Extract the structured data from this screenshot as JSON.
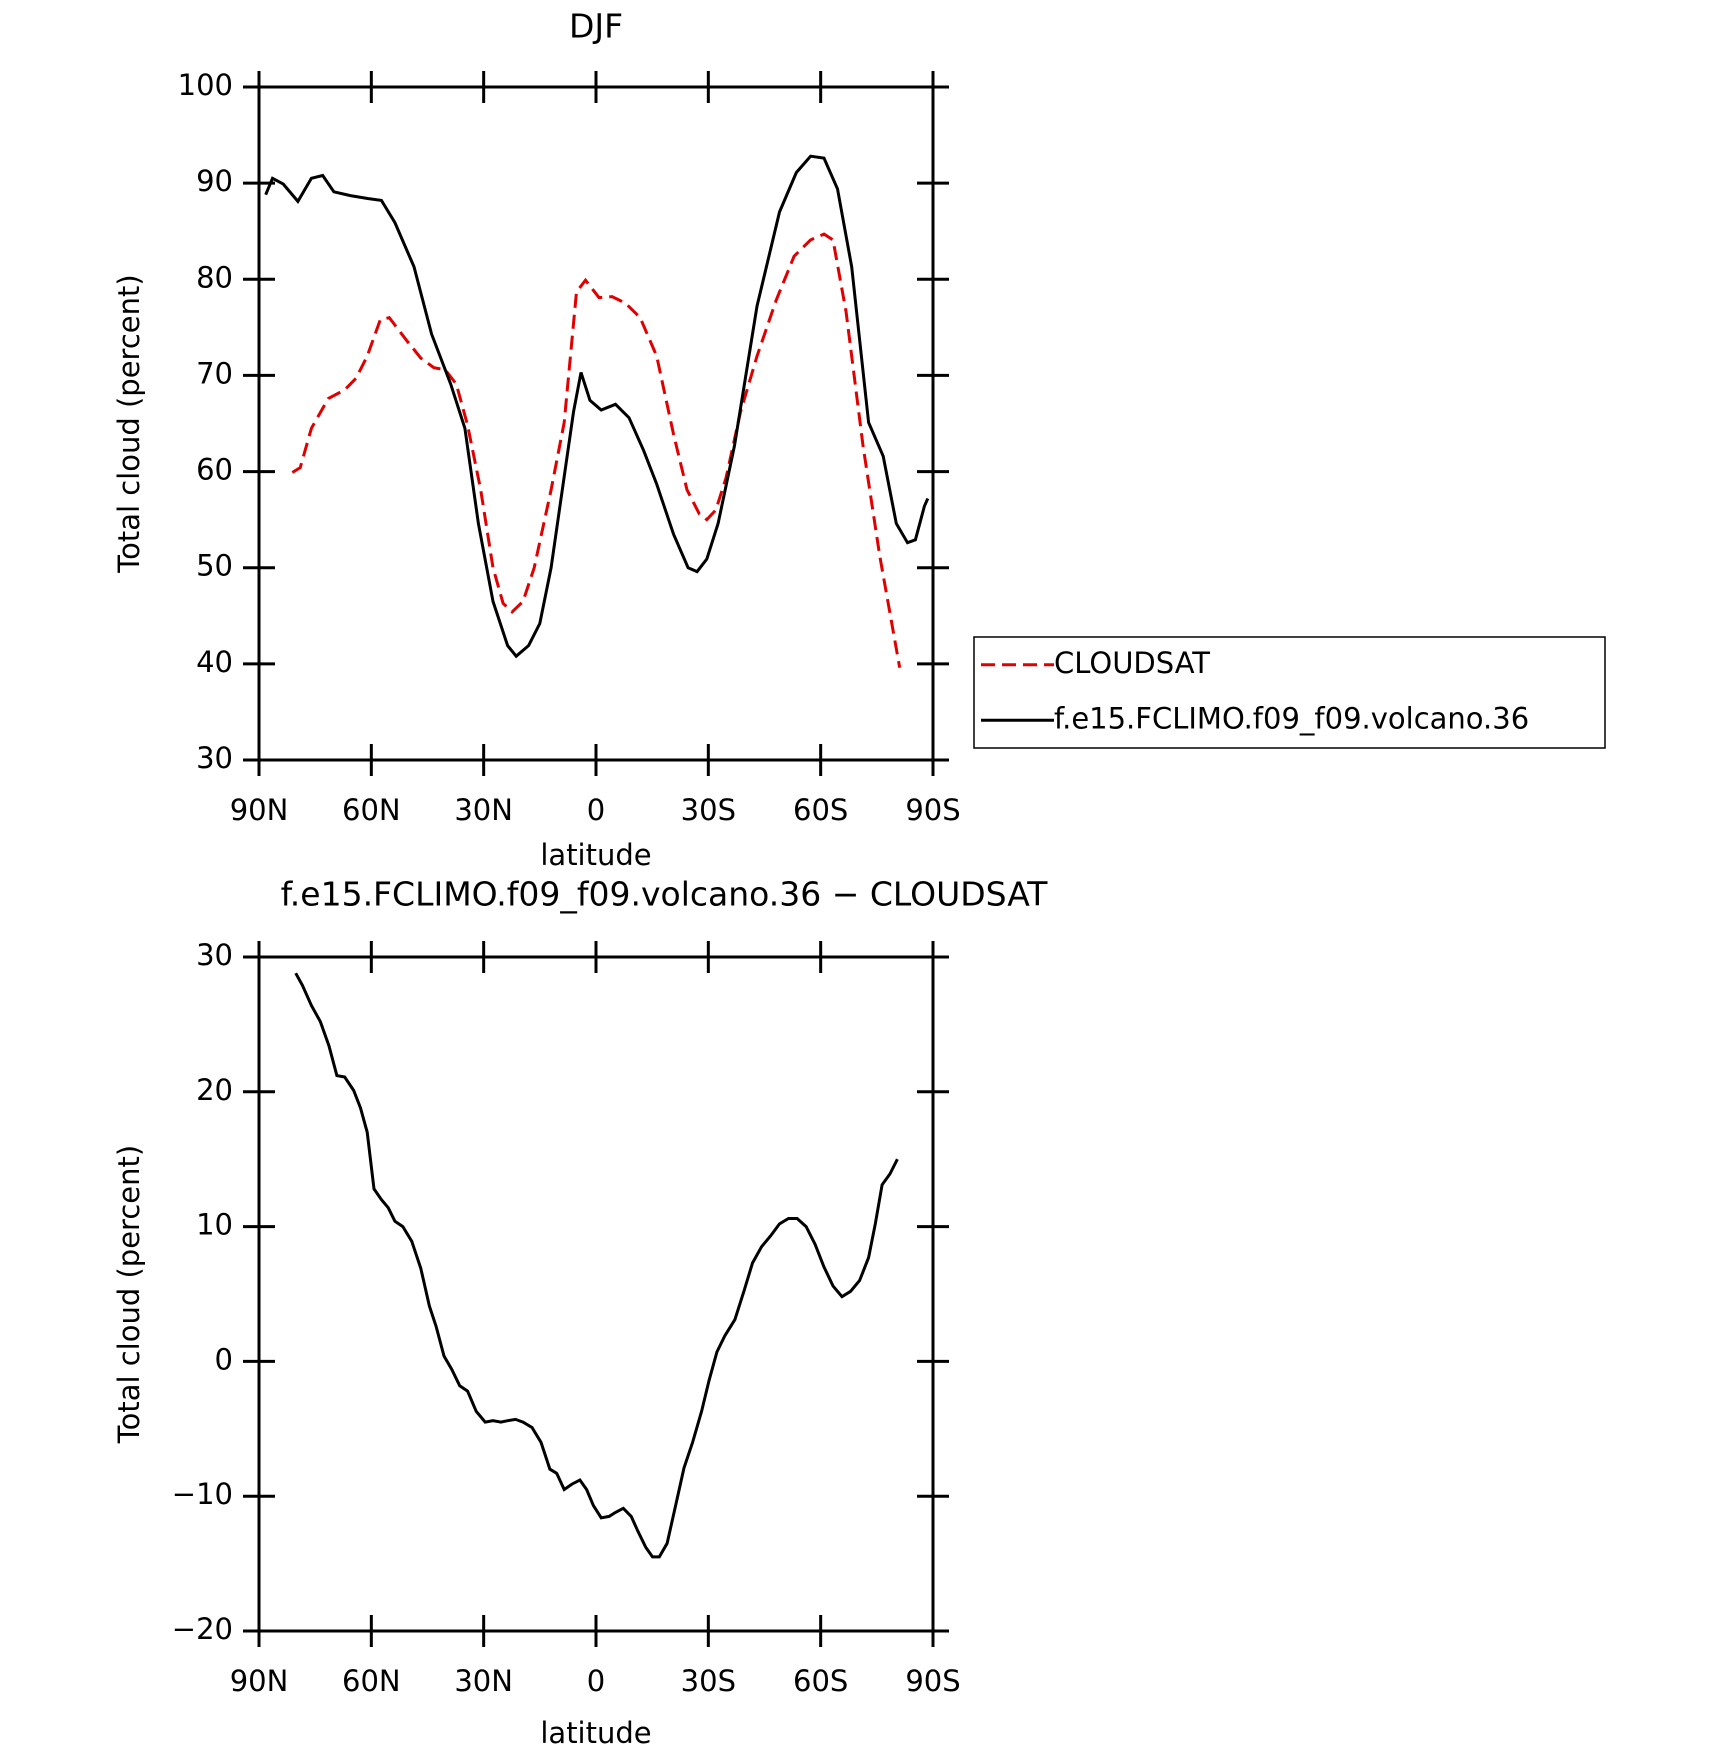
{
  "chart_data": [
    {
      "type": "line",
      "title": "DJF",
      "x_label": "latitude",
      "y_label": "Total cloud (percent)",
      "xlim": [
        90,
        -90
      ],
      "ylim": [
        30,
        100
      ],
      "xticks": [
        {
          "value": 90,
          "label": "90N"
        },
        {
          "value": 60,
          "label": "60N"
        },
        {
          "value": 30,
          "label": "30N"
        },
        0,
        {
          "value": -30,
          "label": "30S"
        },
        {
          "value": -60,
          "label": "60S"
        },
        {
          "value": -90,
          "label": "90S"
        }
      ],
      "yticks": [
        30,
        40,
        50,
        60,
        70,
        80,
        90,
        100
      ],
      "legend": "right",
      "series": [
        {
          "name": "CLOUDSAT",
          "color": "#e00000",
          "dashed": true,
          "x": [
            81.1,
            79,
            76,
            71.5,
            67.1,
            64.1,
            61.1,
            57.6,
            55.2,
            50.7,
            46.8,
            43.3,
            40.3,
            37.3,
            34.3,
            30.8,
            27.5,
            24.8,
            22.4,
            19.5,
            16.5,
            12,
            8.5,
            5.2,
            2.8,
            -0.8,
            -4.3,
            -7.9,
            -11.8,
            -16.2,
            -20.7,
            -24.3,
            -27.6,
            -29.6,
            -32,
            -34.7,
            -38.6,
            -43,
            -48.1,
            -52.9,
            -57.3,
            -60.9,
            -63.3,
            -66.8,
            -71.3,
            -75.8,
            -81.1
          ],
          "values": [
            59.9,
            60.4,
            64.5,
            67.6,
            68.5,
            69.7,
            72,
            75.8,
            76,
            73.7,
            71.8,
            70.8,
            70.6,
            69.1,
            64.8,
            58.1,
            50,
            46.3,
            45.4,
            46.5,
            50,
            58.1,
            65.1,
            78.7,
            79.9,
            78.1,
            78.2,
            77.5,
            76,
            72,
            63.9,
            58.1,
            55.6,
            55,
            56,
            59.3,
            66.2,
            72,
            77.8,
            82.4,
            84.1,
            84.7,
            84.1,
            76.6,
            62.7,
            51.2,
            39.6
          ]
        },
        {
          "name": "f.e15.FCLIMO.f09_f09.volcano.36",
          "color": "#000000",
          "dashed": false,
          "x": [
            88.2,
            86.4,
            83.5,
            79.6,
            76,
            73,
            70,
            65.6,
            61,
            57.3,
            53.7,
            48.6,
            43.9,
            38.8,
            35,
            31.4,
            27.5,
            23.6,
            21.3,
            18,
            15,
            12,
            9,
            6,
            4,
            1.6,
            -1.4,
            -5.2,
            -8.8,
            -12.7,
            -16.2,
            -20.7,
            -24.6,
            -27,
            -29.6,
            -32.6,
            -37,
            -43,
            -49,
            -53.5,
            -57.3,
            -60.9,
            -64.5,
            -68.3,
            -72.8,
            -76.7,
            -80.2,
            -83.2,
            -85.3,
            -87.7,
            -88.6
          ],
          "values": [
            88.8,
            90.5,
            89.9,
            88.1,
            90.5,
            90.8,
            89.1,
            88.7,
            88.4,
            88.2,
            85.9,
            81.3,
            74.3,
            69.1,
            64.5,
            54.6,
            46.5,
            41.9,
            40.8,
            41.9,
            44.2,
            50,
            58.1,
            66.2,
            70.3,
            67.4,
            66.4,
            67,
            65.6,
            62.2,
            58.7,
            53.5,
            50,
            49.6,
            50.9,
            54.6,
            62.7,
            77.2,
            87,
            91.1,
            92.8,
            92.6,
            89.4,
            81.3,
            65.1,
            61.6,
            54.6,
            52.6,
            52.9,
            56.4,
            57.2
          ]
        }
      ]
    },
    {
      "type": "line",
      "title": "f.e15.FCLIMO.f09_f09.volcano.36 − CLOUDSAT",
      "x_label": "latitude",
      "y_label": "Total cloud (percent)",
      "xlim": [
        90,
        -90
      ],
      "ylim": [
        -20,
        30
      ],
      "xticks": [
        {
          "value": 90,
          "label": "90N"
        },
        {
          "value": 60,
          "label": "60N"
        },
        {
          "value": 30,
          "label": "30N"
        },
        0,
        {
          "value": -30,
          "label": "30S"
        },
        {
          "value": -60,
          "label": "60S"
        },
        {
          "value": -90,
          "label": "90S"
        }
      ],
      "yticks": [
        {
          "value": -20,
          "label": "−20"
        },
        {
          "value": -10,
          "label": "−10"
        },
        0,
        10,
        20,
        30
      ],
      "series": [
        {
          "color": "#000000",
          "dashed": false,
          "x": [
            80.2,
            78.4,
            76,
            73.6,
            71.3,
            69.2,
            67.1,
            64.7,
            62.9,
            61.1,
            59.3,
            57.3,
            55.5,
            53.7,
            51.6,
            49.2,
            46.8,
            44.5,
            42.7,
            40.6,
            38.5,
            36.4,
            34.3,
            32,
            29.6,
            27.5,
            25.4,
            23.6,
            21.5,
            19.5,
            17.1,
            14.7,
            12.3,
            10.5,
            8.5,
            6.4,
            4.3,
            2.5,
            0.7,
            -1.4,
            -3.5,
            -5.2,
            -7.3,
            -9.4,
            -11.2,
            -13.3,
            -15.1,
            -16.9,
            -19,
            -21.1,
            -23.5,
            -25.8,
            -28.2,
            -30.2,
            -32.3,
            -34.4,
            -37.1,
            -39.5,
            -41.8,
            -44.2,
            -46.6,
            -49,
            -51.4,
            -53.7,
            -56.1,
            -58.5,
            -60.9,
            -63.3,
            -65.7,
            -68,
            -70.4,
            -72.8,
            -74.6,
            -76.4,
            -78.5,
            -80.5
          ],
          "values": [
            28.8,
            27.9,
            26.4,
            25.2,
            23.4,
            21.2,
            21.1,
            20.1,
            18.8,
            17,
            12.8,
            12,
            11.4,
            10.4,
            10,
            8.9,
            6.9,
            4.1,
            2.6,
            0.4,
            -0.6,
            -1.8,
            -2.2,
            -3.7,
            -4.5,
            -4.4,
            -4.5,
            -4.4,
            -4.3,
            -4.5,
            -4.9,
            -6,
            -8,
            -8.3,
            -9.5,
            -9.1,
            -8.8,
            -9.5,
            -10.7,
            -11.6,
            -11.5,
            -11.2,
            -10.9,
            -11.5,
            -12.6,
            -13.8,
            -14.5,
            -14.5,
            -13.5,
            -10.9,
            -7.9,
            -6,
            -3.7,
            -1.4,
            0.7,
            1.9,
            3.1,
            5.2,
            7.3,
            8.5,
            9.3,
            10.2,
            10.6,
            10.6,
            10,
            8.7,
            7,
            5.6,
            4.8,
            5.2,
            6,
            7.7,
            10.2,
            13.1,
            13.9,
            15
          ]
        }
      ]
    }
  ]
}
